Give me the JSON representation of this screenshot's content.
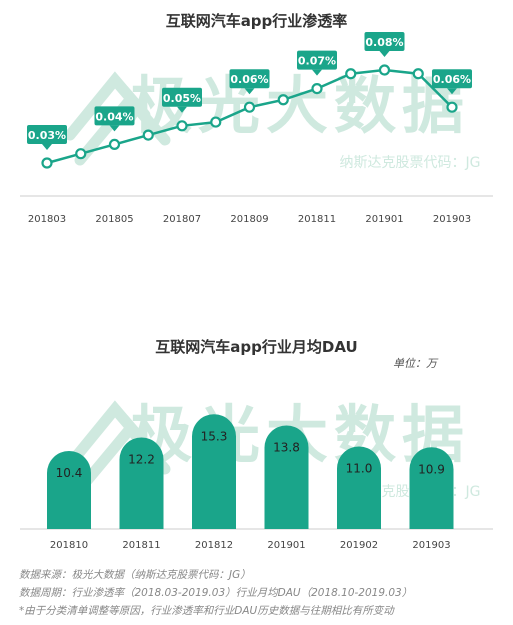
{
  "watermark": {
    "text": "极光大数据",
    "sub_text": "纳斯达克股票代码：JG",
    "color": "#cfe9df"
  },
  "accent_color": "#1aa58a",
  "charts": {
    "penetration": {
      "title": "互联网汽车app行业渗透率"
    },
    "dau": {
      "title": "互联网汽车app行业月均DAU",
      "unit": "单位：万"
    }
  },
  "footnotes": [
    "数据来源：极光大数据（纳斯达克股票代码：JG）",
    "数据周期：行业渗透率（2018.03-2019.03）行业月均DAU（2018.10-2019.03）",
    "*由于分类清单调整等原因，行业渗透率和行业DAU历史数据与往期相比有所变动"
  ],
  "chart_data": [
    {
      "type": "line",
      "title": "互联网汽车app行业渗透率",
      "x": [
        "201803",
        "201804",
        "201805",
        "201806",
        "201807",
        "201808",
        "201809",
        "201810",
        "201811",
        "201812",
        "201901",
        "201902",
        "201903"
      ],
      "tick_labels": [
        "201803",
        "201805",
        "201807",
        "201809",
        "201811",
        "201901",
        "201903"
      ],
      "series": [
        {
          "values": [
            0.03,
            0.035,
            0.04,
            0.045,
            0.05,
            0.052,
            0.06,
            0.064,
            0.07,
            0.078,
            0.08,
            0.078,
            0.06
          ]
        }
      ],
      "data_labels": [
        {
          "index": 0,
          "text": "0.03%"
        },
        {
          "index": 2,
          "text": "0.04%"
        },
        {
          "index": 4,
          "text": "0.05%"
        },
        {
          "index": 6,
          "text": "0.06%"
        },
        {
          "index": 8,
          "text": "0.07%"
        },
        {
          "index": 10,
          "text": "0.08%"
        },
        {
          "index": 12,
          "text": "0.06%"
        }
      ],
      "unit": "%",
      "grid": false
    },
    {
      "type": "bar",
      "title": "互联网汽车app行业月均DAU",
      "categories": [
        "201810",
        "201811",
        "201812",
        "201901",
        "201902",
        "201903"
      ],
      "values": [
        10.4,
        12.2,
        15.3,
        13.8,
        11.0,
        10.9
      ],
      "value_labels": [
        "10.4",
        "12.2",
        "15.3",
        "13.8",
        "11.0",
        "10.9"
      ],
      "unit": "万",
      "ylim": [
        0,
        16
      ],
      "grid": false
    }
  ]
}
